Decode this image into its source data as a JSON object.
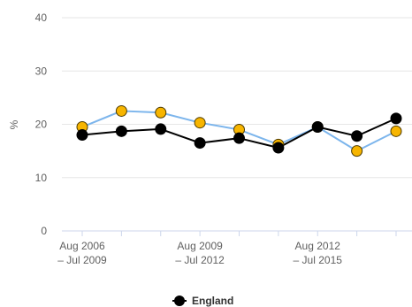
{
  "chart_data": {
    "type": "line",
    "ylabel": "%",
    "ylim": [
      0,
      40
    ],
    "yticks": [
      "0",
      "10",
      "20",
      "30",
      "40"
    ],
    "x_tick_labels": [
      {
        "index": 0,
        "lines": [
          "Aug 2006",
          "– Jul 2009"
        ]
      },
      {
        "index": 3,
        "lines": [
          "Aug 2009",
          "– Jul 2012"
        ]
      },
      {
        "index": 6,
        "lines": [
          "Aug 2012",
          "– Jul 2015"
        ]
      }
    ],
    "point_count": 9,
    "series": [
      {
        "values": [
          19.5,
          22.5,
          22.2,
          20.3,
          19.0,
          16.2,
          19.5,
          15.0,
          18.7
        ],
        "color": "#7cb5ec",
        "marker_color": "#f7b500"
      },
      {
        "name": "England",
        "values": [
          18.0,
          18.7,
          19.1,
          16.5,
          17.4,
          15.6,
          19.5,
          17.8,
          21.1
        ],
        "color": "#000000",
        "marker_color": "#000000"
      }
    ],
    "grid": true,
    "legend": "bottom-center"
  }
}
